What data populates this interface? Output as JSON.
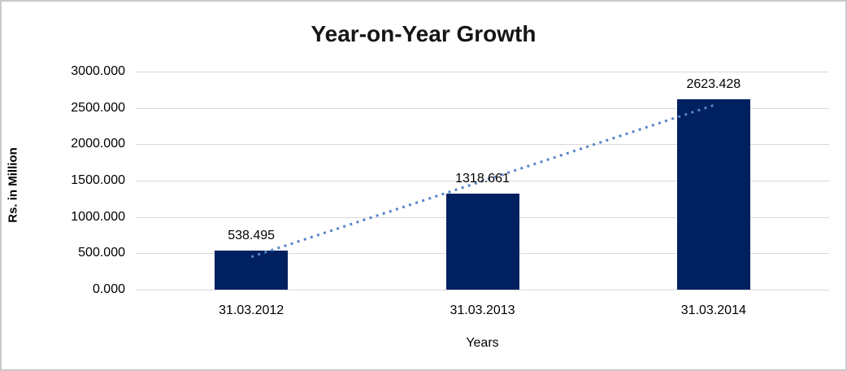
{
  "chart_data": {
    "type": "bar",
    "title": "Year-on-Year Growth",
    "xlabel": "Years",
    "ylabel": "Rs. in Million",
    "categories": [
      "31.03.2012",
      "31.03.2013",
      "31.03.2014"
    ],
    "values": [
      538.495,
      1318.661,
      2623.428
    ],
    "value_labels": [
      "538.495",
      "1318.661",
      "2623.428"
    ],
    "ytick_labels": [
      "3000.000",
      "2500.000",
      "2000.000",
      "1500.000",
      "1000.000",
      "500.000",
      "0.000"
    ],
    "ytick_values": [
      3000,
      2500,
      2000,
      1500,
      1000,
      500,
      0
    ],
    "ylim": [
      0,
      3000
    ],
    "grid": true,
    "legend": "none",
    "trendline": "linear dotted",
    "colors": {
      "bar": "#002060",
      "trendline": "#5585c8",
      "gridline": "#d9d9d9",
      "text": "#000000",
      "frame_border": "#c9c9c9"
    }
  }
}
